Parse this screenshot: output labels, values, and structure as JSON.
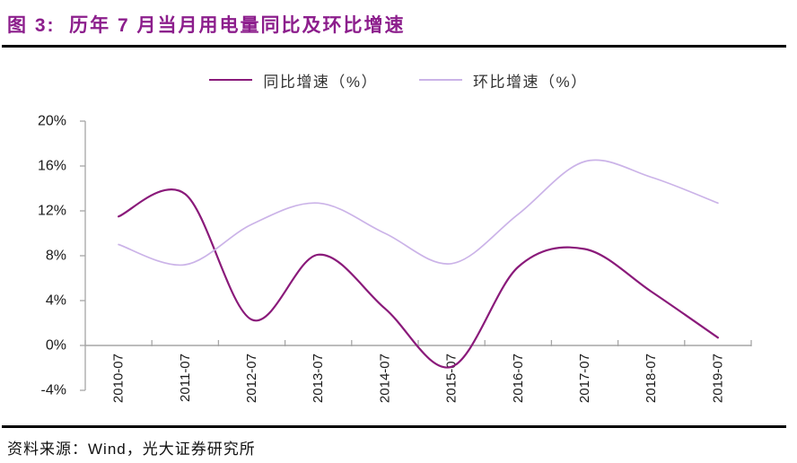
{
  "header": {
    "title": "图 3:  历年 7 月当月用电量同比及环比增速",
    "title_color": "#8C1E8C"
  },
  "legend": {
    "items": [
      {
        "label": "同比增速（%）",
        "color": "#8A1A7A"
      },
      {
        "label": "环比增速（%）",
        "color": "#CBB3E8"
      }
    ]
  },
  "footer": {
    "source": "资料来源：Wind，光大证券研究所"
  },
  "colors": {
    "axis": "#A6A6A6",
    "tick_label": "#1A1A1A",
    "yoy_line": "#8A1A7A",
    "mom_line": "#CBB3E8"
  },
  "chart_data": {
    "type": "line",
    "smooth": true,
    "grid": false,
    "legend_position": "top",
    "categories": [
      "2010-07",
      "2011-07",
      "2012-07",
      "2013-07",
      "2014-07",
      "2015-07",
      "2016-07",
      "2017-07",
      "2018-07",
      "2019-07"
    ],
    "series": [
      {
        "name": "同比增速（%）",
        "color": "#8A1A7A",
        "values": [
          11.5,
          13.5,
          2.3,
          8.1,
          3.3,
          -1.9,
          7.0,
          8.6,
          4.8,
          0.7
        ]
      },
      {
        "name": "环比增速（%）",
        "color": "#CBB3E8",
        "values": [
          9.0,
          7.2,
          10.8,
          12.7,
          10.0,
          7.3,
          11.7,
          16.4,
          15.0,
          12.7
        ]
      }
    ],
    "ylim": [
      -4,
      20
    ],
    "y_ticks": [
      20,
      16,
      12,
      8,
      4,
      0,
      -4
    ],
    "y_tick_labels": [
      "20%",
      "16%",
      "12%",
      "8%",
      "4%",
      "0%",
      "-4%"
    ],
    "xlabel": "",
    "ylabel": ""
  }
}
